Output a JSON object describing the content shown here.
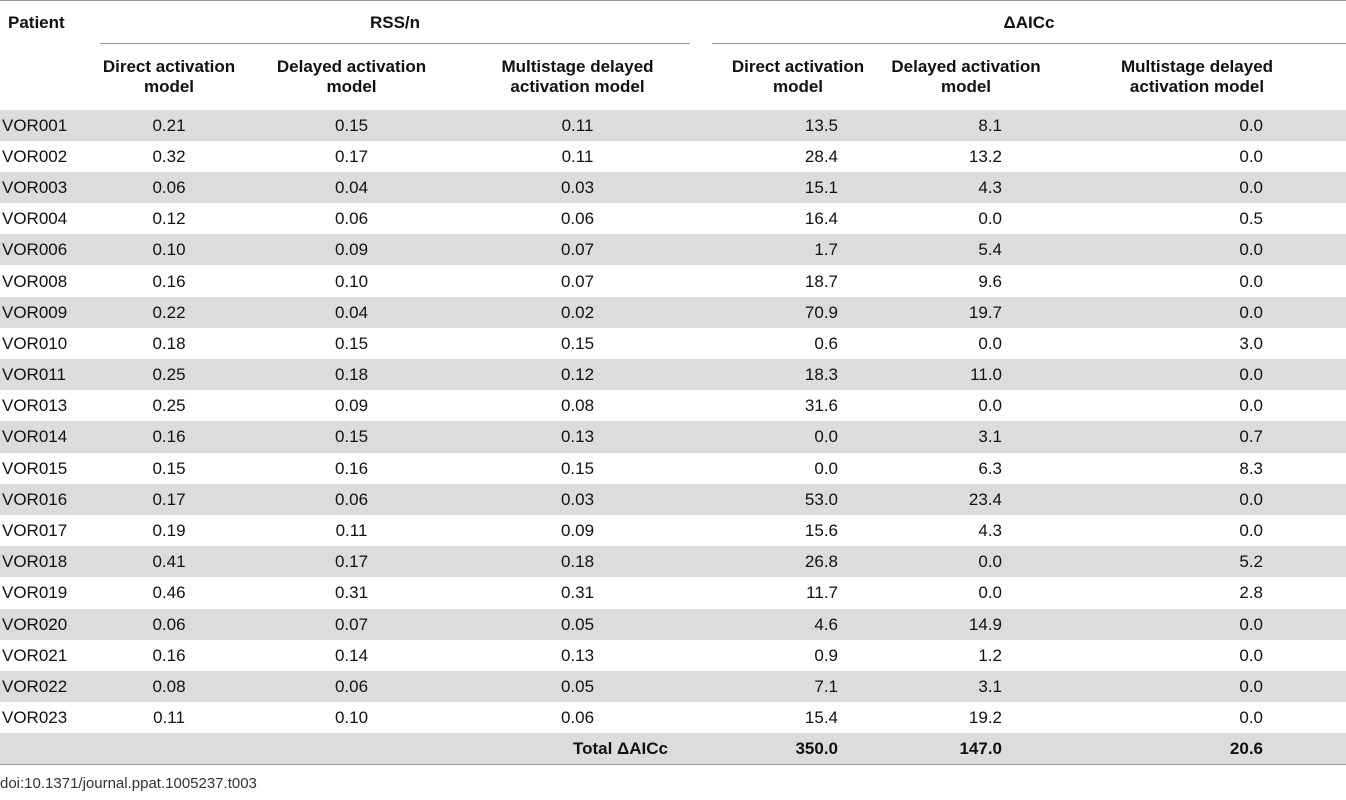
{
  "table": {
    "headers": {
      "patient": "Patient",
      "group_rss": "RSS/n",
      "group_aicc": "ΔAICc",
      "col_direct": "Direct activation model",
      "col_delayed": "Delayed activation model",
      "col_multistage": "Multistage delayed activation model",
      "col_direct_l1": "Direct activation",
      "col_direct_l2": "model",
      "col_delayed_l1": "Delayed activation",
      "col_delayed_l2": "model",
      "col_multi_l1": "Multistage delayed",
      "col_multi_l2": "activation model"
    },
    "rows": [
      {
        "patient": "VOR001",
        "rss": [
          "0.21",
          "0.15",
          "0.11"
        ],
        "aicc": [
          "13.5",
          "8.1",
          "0.0"
        ]
      },
      {
        "patient": "VOR002",
        "rss": [
          "0.32",
          "0.17",
          "0.11"
        ],
        "aicc": [
          "28.4",
          "13.2",
          "0.0"
        ]
      },
      {
        "patient": "VOR003",
        "rss": [
          "0.06",
          "0.04",
          "0.03"
        ],
        "aicc": [
          "15.1",
          "4.3",
          "0.0"
        ]
      },
      {
        "patient": "VOR004",
        "rss": [
          "0.12",
          "0.06",
          "0.06"
        ],
        "aicc": [
          "16.4",
          "0.0",
          "0.5"
        ]
      },
      {
        "patient": "VOR006",
        "rss": [
          "0.10",
          "0.09",
          "0.07"
        ],
        "aicc": [
          "1.7",
          "5.4",
          "0.0"
        ]
      },
      {
        "patient": "VOR008",
        "rss": [
          "0.16",
          "0.10",
          "0.07"
        ],
        "aicc": [
          "18.7",
          "9.6",
          "0.0"
        ]
      },
      {
        "patient": "VOR009",
        "rss": [
          "0.22",
          "0.04",
          "0.02"
        ],
        "aicc": [
          "70.9",
          "19.7",
          "0.0"
        ]
      },
      {
        "patient": "VOR010",
        "rss": [
          "0.18",
          "0.15",
          "0.15"
        ],
        "aicc": [
          "0.6",
          "0.0",
          "3.0"
        ]
      },
      {
        "patient": "VOR011",
        "rss": [
          "0.25",
          "0.18",
          "0.12"
        ],
        "aicc": [
          "18.3",
          "11.0",
          "0.0"
        ]
      },
      {
        "patient": "VOR013",
        "rss": [
          "0.25",
          "0.09",
          "0.08"
        ],
        "aicc": [
          "31.6",
          "0.0",
          "0.0"
        ]
      },
      {
        "patient": "VOR014",
        "rss": [
          "0.16",
          "0.15",
          "0.13"
        ],
        "aicc": [
          "0.0",
          "3.1",
          "0.7"
        ]
      },
      {
        "patient": "VOR015",
        "rss": [
          "0.15",
          "0.16",
          "0.15"
        ],
        "aicc": [
          "0.0",
          "6.3",
          "8.3"
        ]
      },
      {
        "patient": "VOR016",
        "rss": [
          "0.17",
          "0.06",
          "0.03"
        ],
        "aicc": [
          "53.0",
          "23.4",
          "0.0"
        ]
      },
      {
        "patient": "VOR017",
        "rss": [
          "0.19",
          "0.11",
          "0.09"
        ],
        "aicc": [
          "15.6",
          "4.3",
          "0.0"
        ]
      },
      {
        "patient": "VOR018",
        "rss": [
          "0.41",
          "0.17",
          "0.18"
        ],
        "aicc": [
          "26.8",
          "0.0",
          "5.2"
        ]
      },
      {
        "patient": "VOR019",
        "rss": [
          "0.46",
          "0.31",
          "0.31"
        ],
        "aicc": [
          "11.7",
          "0.0",
          "2.8"
        ]
      },
      {
        "patient": "VOR020",
        "rss": [
          "0.06",
          "0.07",
          "0.05"
        ],
        "aicc": [
          "4.6",
          "14.9",
          "0.0"
        ]
      },
      {
        "patient": "VOR021",
        "rss": [
          "0.16",
          "0.14",
          "0.13"
        ],
        "aicc": [
          "0.9",
          "1.2",
          "0.0"
        ]
      },
      {
        "patient": "VOR022",
        "rss": [
          "0.08",
          "0.06",
          "0.05"
        ],
        "aicc": [
          "7.1",
          "3.1",
          "0.0"
        ]
      },
      {
        "patient": "VOR023",
        "rss": [
          "0.11",
          "0.10",
          "0.06"
        ],
        "aicc": [
          "15.4",
          "19.2",
          "0.0"
        ]
      }
    ],
    "total": {
      "label": "Total ΔAICc",
      "values": [
        "350.0",
        "147.0",
        "20.6"
      ]
    }
  },
  "footer": {
    "doi": "doi:10.1371/journal.ppat.1005237.t003"
  },
  "colors": {
    "row_shade": "#dcdcdc",
    "rule": "#9a9a9a"
  }
}
